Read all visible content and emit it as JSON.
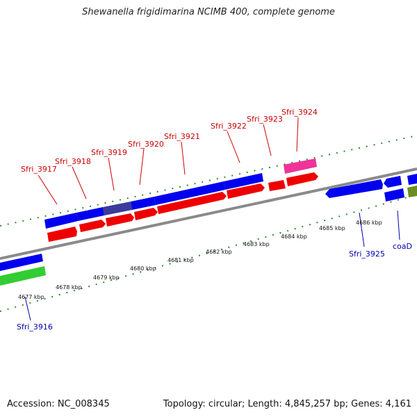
{
  "title": "Shewanella frigidimarina NCIMB 400, complete genome",
  "accession_text": "Accession: NC_008345",
  "topology_text": "Topology: circular; Length: 4,845,257 bp; Genes: 4,161",
  "colors": {
    "forward_gene": "#0000ee",
    "forward_gene_highlight": "#3b3b9c",
    "reverse_gene": "#ee0000",
    "rna_gene": "#ee3399",
    "other_gene": "#33cc33",
    "olive_gene": "#6b8e23",
    "backbone": "#888888",
    "tick": "#2e8b2e",
    "label_red": "#cc0000",
    "label_blue": "#0000aa"
  },
  "gene_labels": [
    {
      "text": "Sfri_3916",
      "strand": "reverse"
    },
    {
      "text": "Sfri_3917",
      "strand": "forward"
    },
    {
      "text": "Sfri_3918",
      "strand": "forward"
    },
    {
      "text": "Sfri_3919",
      "strand": "forward"
    },
    {
      "text": "Sfri_3920",
      "strand": "forward"
    },
    {
      "text": "Sfri_3921",
      "strand": "forward"
    },
    {
      "text": "Sfri_3922",
      "strand": "forward"
    },
    {
      "text": "Sfri_3923",
      "strand": "forward"
    },
    {
      "text": "Sfri_3924",
      "strand": "forward"
    },
    {
      "text": "Sfri_3925",
      "strand": "reverse"
    },
    {
      "text": "coaD",
      "strand": "reverse"
    }
  ],
  "ticks": [
    "4677 kbp",
    "4678 kbp",
    "4679 kbp",
    "4680 kbp",
    "4681 kbp",
    "4682 kbp",
    "4683 kbp",
    "4684 kbp",
    "4685 kbp",
    "4686 kbp"
  ]
}
